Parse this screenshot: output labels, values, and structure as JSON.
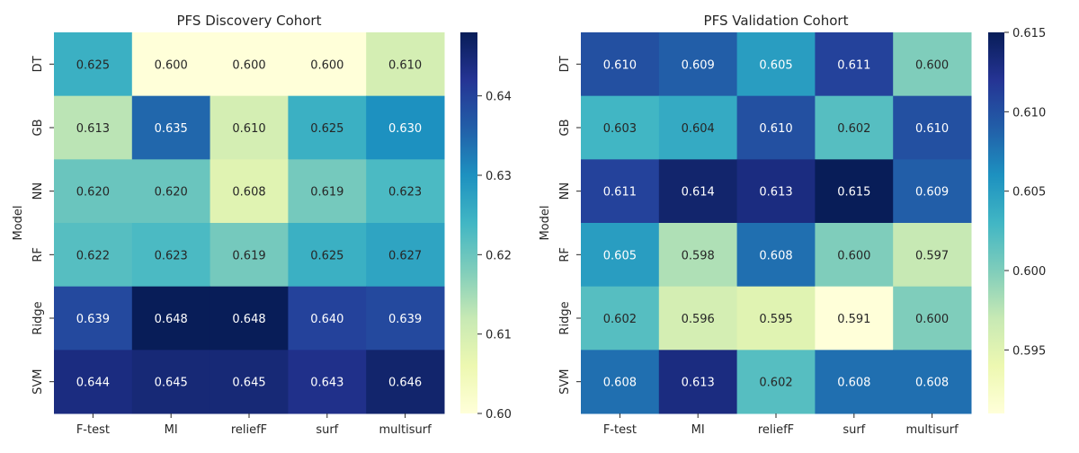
{
  "chart_data": [
    {
      "type": "heatmap",
      "title": "PFS Discovery Cohort",
      "ylabel": "Model",
      "xlabel": "",
      "x_categories": [
        "F-test",
        "MI",
        "reliefF",
        "surf",
        "multisurf"
      ],
      "y_categories": [
        "DT",
        "GB",
        "NN",
        "RF",
        "Ridge",
        "SVM"
      ],
      "values": [
        [
          0.625,
          0.6,
          0.6,
          0.6,
          0.61
        ],
        [
          0.613,
          0.635,
          0.61,
          0.625,
          0.63
        ],
        [
          0.62,
          0.62,
          0.608,
          0.619,
          0.623
        ],
        [
          0.622,
          0.623,
          0.619,
          0.625,
          0.627
        ],
        [
          0.639,
          0.648,
          0.648,
          0.64,
          0.639
        ],
        [
          0.644,
          0.645,
          0.645,
          0.643,
          0.646
        ]
      ],
      "value_labels": [
        [
          "0.625",
          "0.600",
          "0.600",
          "0.600",
          "0.610"
        ],
        [
          "0.613",
          "0.635",
          "0.610",
          "0.625",
          "0.630"
        ],
        [
          "0.620",
          "0.620",
          "0.608",
          "0.619",
          "0.623"
        ],
        [
          "0.622",
          "0.623",
          "0.619",
          "0.625",
          "0.627"
        ],
        [
          "0.639",
          "0.648",
          "0.648",
          "0.640",
          "0.639"
        ],
        [
          "0.644",
          "0.645",
          "0.645",
          "0.643",
          "0.646"
        ]
      ],
      "colorbar": {
        "vmin": 0.6,
        "vmax": 0.648,
        "ticks": [
          0.6,
          0.61,
          0.62,
          0.63,
          0.64
        ],
        "tick_labels": [
          "0.60",
          "0.61",
          "0.62",
          "0.63",
          "0.64"
        ]
      },
      "colormap": "YlGnBu"
    },
    {
      "type": "heatmap",
      "title": "PFS Validation Cohort",
      "ylabel": "Model",
      "xlabel": "",
      "x_categories": [
        "F-test",
        "MI",
        "reliefF",
        "surf",
        "multisurf"
      ],
      "y_categories": [
        "DT",
        "GB",
        "NN",
        "RF",
        "Ridge",
        "SVM"
      ],
      "values": [
        [
          0.61,
          0.609,
          0.605,
          0.611,
          0.6
        ],
        [
          0.603,
          0.604,
          0.61,
          0.602,
          0.61
        ],
        [
          0.611,
          0.614,
          0.613,
          0.615,
          0.609
        ],
        [
          0.605,
          0.598,
          0.608,
          0.6,
          0.597
        ],
        [
          0.602,
          0.596,
          0.595,
          0.591,
          0.6
        ],
        [
          0.608,
          0.613,
          0.602,
          0.608,
          0.608
        ]
      ],
      "value_labels": [
        [
          "0.610",
          "0.609",
          "0.605",
          "0.611",
          "0.600"
        ],
        [
          "0.603",
          "0.604",
          "0.610",
          "0.602",
          "0.610"
        ],
        [
          "0.611",
          "0.614",
          "0.613",
          "0.615",
          "0.609"
        ],
        [
          "0.605",
          "0.598",
          "0.608",
          "0.600",
          "0.597"
        ],
        [
          "0.602",
          "0.596",
          "0.595",
          "0.591",
          "0.600"
        ],
        [
          "0.608",
          "0.613",
          "0.602",
          "0.608",
          "0.608"
        ]
      ],
      "colorbar": {
        "vmin": 0.591,
        "vmax": 0.615,
        "ticks": [
          0.595,
          0.6,
          0.605,
          0.61,
          0.615
        ],
        "tick_labels": [
          "0.595",
          "0.600",
          "0.605",
          "0.610",
          "0.615"
        ]
      },
      "colormap": "YlGnBu"
    }
  ]
}
